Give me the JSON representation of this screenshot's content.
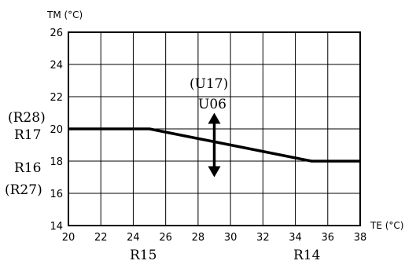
{
  "chart_data": {
    "type": "line",
    "title": "",
    "xlabel": "TE (°C)",
    "ylabel": "TM (°C)",
    "xlim": [
      20,
      38
    ],
    "ylim": [
      14,
      26
    ],
    "xticks": [
      "20",
      "22",
      "24",
      "26",
      "28",
      "30",
      "32",
      "34",
      "36",
      "38"
    ],
    "yticks": [
      "14",
      "16",
      "18",
      "20",
      "22",
      "24",
      "26"
    ],
    "grid": true,
    "series": [
      {
        "x": [
          20,
          25,
          35,
          38
        ],
        "y": [
          20,
          20,
          18,
          18
        ]
      }
    ],
    "arrow": {
      "x": 29,
      "y_top": 21,
      "y_bottom": 17
    },
    "labels": {
      "upper_left_line1": "(R28)",
      "upper_left_line2": "R17",
      "lower_left_line1": "R16",
      "lower_left_line2": "(R27)",
      "bottom_left": "R15",
      "bottom_right": "R14",
      "arrow_line1": "(U17)",
      "arrow_line2": "U06"
    }
  }
}
